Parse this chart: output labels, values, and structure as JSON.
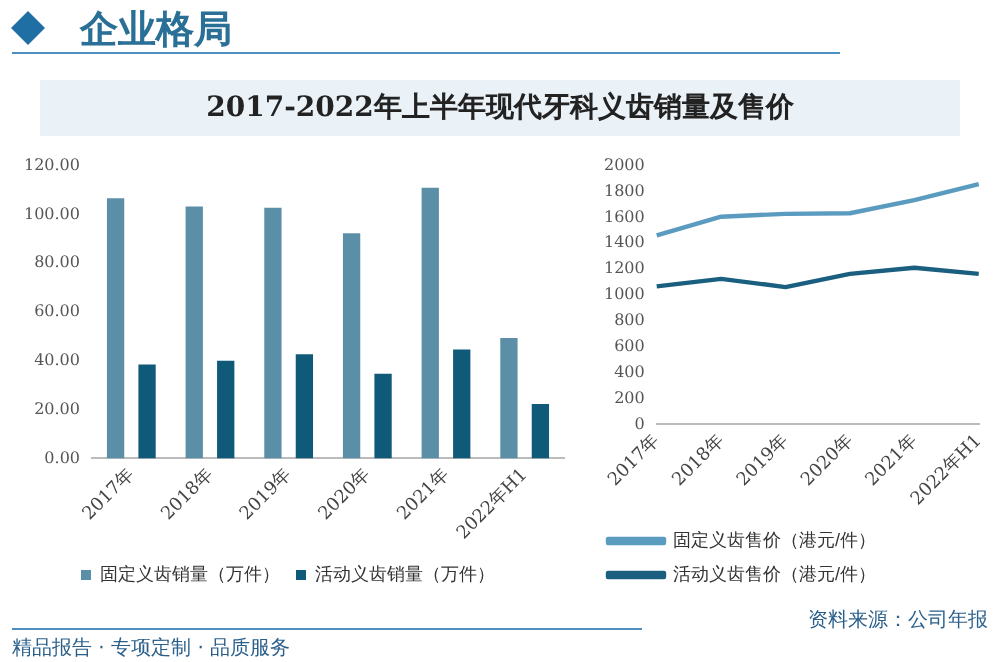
{
  "chart_data": [
    {
      "type": "bar",
      "subtitle": "企业格局",
      "title": "2017-2022年上半年现代牙科义齿销量及售价",
      "categories": [
        "2017年",
        "2018年",
        "2019年",
        "2020年",
        "2021年",
        "2022年H1"
      ],
      "series": [
        {
          "name": "固定义齿销量（万件）",
          "color": "#5b8fa8",
          "values": [
            106.6,
            103.2,
            102.7,
            92.3,
            110.9,
            49.3
          ]
        },
        {
          "name": "活动义齿销量（万件）",
          "color": "#0f5a78",
          "values": [
            38.5,
            40.0,
            42.7,
            34.7,
            44.6,
            22.3
          ]
        }
      ],
      "ylim": [
        0,
        120
      ],
      "yticks": [
        {
          "value": 0,
          "label": "0.00"
        },
        {
          "value": 20,
          "label": "20.00"
        },
        {
          "value": 40,
          "label": "40.00"
        },
        {
          "value": 60,
          "label": "60.00"
        },
        {
          "value": 80,
          "label": "80.00"
        },
        {
          "value": 100,
          "label": "100.00"
        },
        {
          "value": 120,
          "label": "120.00"
        }
      ],
      "legend": "bottom"
    },
    {
      "type": "line",
      "categories": [
        "2017年",
        "2018年",
        "2019年",
        "2020年",
        "2021年",
        "2022年H1"
      ],
      "series": [
        {
          "name": "固定义齿售价（港元/件）",
          "color": "#5a9bbf",
          "values": [
            1461,
            1605,
            1627,
            1632,
            1733,
            1856
          ]
        },
        {
          "name": "活动义齿售价（港元/件）",
          "color": "#1a5f7f",
          "values": [
            1067,
            1125,
            1061,
            1163,
            1211,
            1163
          ]
        }
      ],
      "ylim": [
        0,
        2000
      ],
      "yticks": [
        0,
        200,
        400,
        600,
        800,
        1000,
        1200,
        1400,
        1600,
        1800,
        2000
      ],
      "legend": "bottom",
      "marker": "none",
      "annotations": [
        "资料来源：公司年报",
        "精品报告 · 专项定制 · 品质服务"
      ]
    }
  ]
}
